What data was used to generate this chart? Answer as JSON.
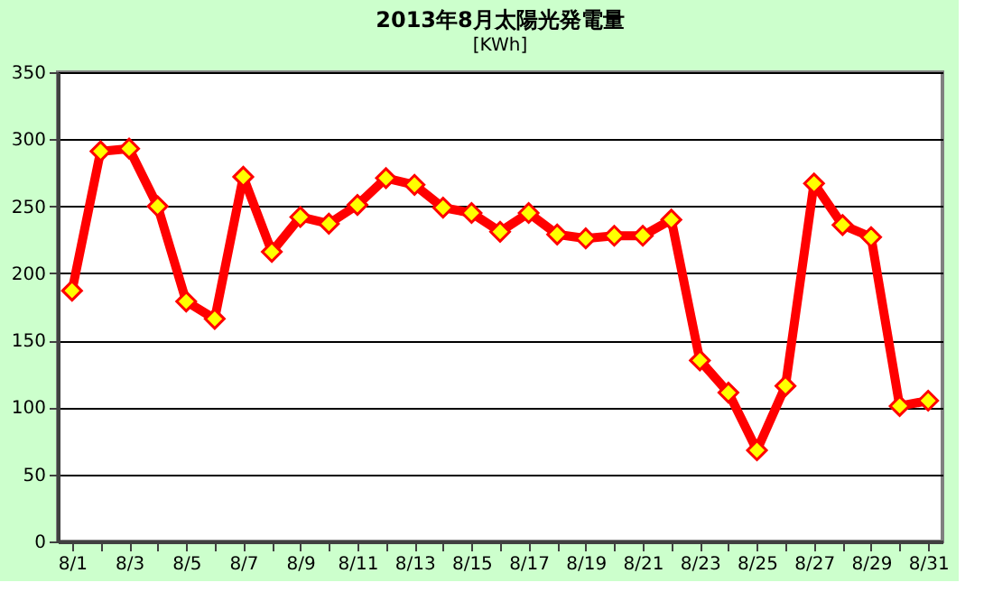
{
  "chart_data": {
    "type": "line",
    "title": "2013年8月太陽光発電量",
    "ylabel": "[KWh]",
    "categories": [
      "8/1",
      null,
      "8/3",
      null,
      "8/5",
      null,
      "8/7",
      null,
      "8/9",
      null,
      "8/11",
      null,
      "8/13",
      null,
      "8/15",
      null,
      "8/17",
      null,
      "8/19",
      null,
      "8/21",
      null,
      "8/23",
      null,
      "8/25",
      null,
      "8/27",
      null,
      "8/29",
      null,
      "8/31"
    ],
    "series": [
      {
        "color": "#ff0000",
        "values": [
          187,
          291,
          293,
          250,
          179,
          166,
          272,
          216,
          242,
          237,
          251,
          271,
          266,
          249,
          245,
          231,
          245,
          229,
          226,
          228,
          228,
          240,
          135,
          111,
          68,
          116,
          267,
          236,
          227,
          101,
          105
        ]
      }
    ],
    "ylim": [
      0,
      350
    ],
    "yticks": [
      0,
      50,
      100,
      150,
      200,
      250,
      300,
      350
    ],
    "grid": "y",
    "marker": "diamond",
    "line_style": "solid"
  }
}
